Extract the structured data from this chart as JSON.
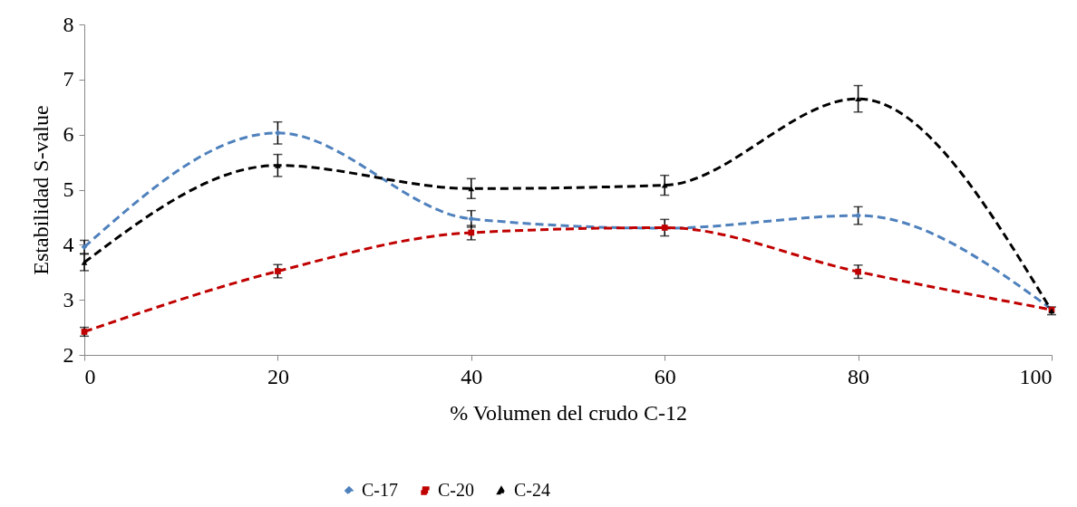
{
  "chart_data": {
    "type": "line",
    "xlabel": "% Volumen del crudo C-12",
    "ylabel": "Estabilidad S-value",
    "x": [
      0,
      20,
      40,
      60,
      80,
      100
    ],
    "series": [
      {
        "name": "C-17",
        "color": "#4f81bd",
        "marker": "diamond",
        "values": [
          3.96,
          6.03,
          4.47,
          4.3,
          4.53,
          2.83
        ],
        "errors": [
          0.12,
          0.2,
          0.15,
          null,
          0.16,
          null
        ]
      },
      {
        "name": "C-20",
        "color": "#c00000",
        "marker": "square",
        "values": [
          2.42,
          3.52,
          4.22,
          4.31,
          3.51,
          2.82
        ],
        "errors": [
          0.08,
          0.12,
          0.13,
          0.15,
          0.12,
          null
        ]
      },
      {
        "name": "C-24",
        "color": "#000000",
        "marker": "triangle",
        "values": [
          3.68,
          5.44,
          5.02,
          5.08,
          6.65,
          2.8
        ],
        "errors": [
          0.15,
          0.2,
          0.18,
          0.18,
          0.24,
          0.07
        ]
      }
    ],
    "xlim": [
      0,
      100
    ],
    "xticks": [
      0,
      20,
      40,
      60,
      80,
      100
    ],
    "ylim": [
      2,
      8
    ],
    "yticks": [
      2,
      3,
      4,
      5,
      6,
      7,
      8
    ],
    "grid": false,
    "legend": "bottom",
    "line_style": "dashed"
  }
}
